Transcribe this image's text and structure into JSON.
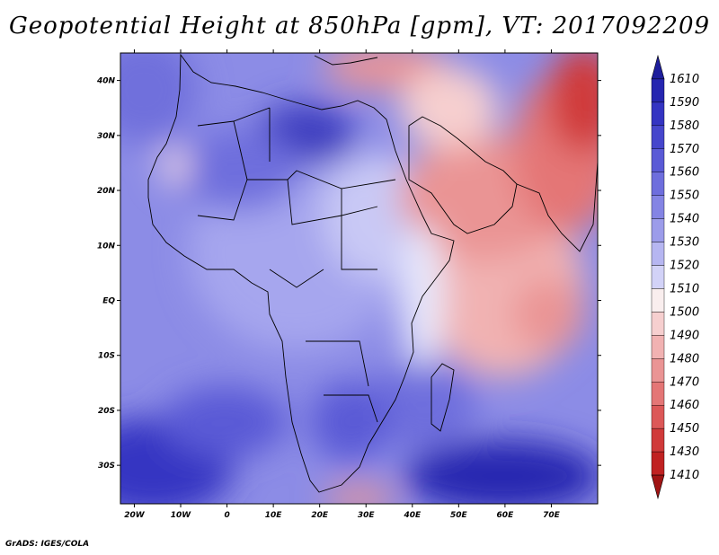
{
  "title": "Geopotential Height at 850hPa [gpm], VT: 2017092209",
  "credit": "GrADS: IGES/COLA",
  "map": {
    "lon_range": [
      -23,
      80
    ],
    "lat_range": [
      -37,
      45
    ],
    "lat_ticks": [
      {
        "lat": 40,
        "label": "40N"
      },
      {
        "lat": 30,
        "label": "30N"
      },
      {
        "lat": 20,
        "label": "20N"
      },
      {
        "lat": 10,
        "label": "10N"
      },
      {
        "lat": 0,
        "label": "EQ"
      },
      {
        "lat": -10,
        "label": "10S"
      },
      {
        "lat": -20,
        "label": "20S"
      },
      {
        "lat": -30,
        "label": "30S"
      }
    ],
    "lon_ticks": [
      {
        "lon": -20,
        "label": "20W"
      },
      {
        "lon": -10,
        "label": "10W"
      },
      {
        "lon": 0,
        "label": "0"
      },
      {
        "lon": 10,
        "label": "10E"
      },
      {
        "lon": 20,
        "label": "20E"
      },
      {
        "lon": 30,
        "label": "30E"
      },
      {
        "lon": 40,
        "label": "40E"
      },
      {
        "lon": 50,
        "label": "50E"
      },
      {
        "lon": 60,
        "label": "60E"
      },
      {
        "lon": 70,
        "label": "70E"
      }
    ]
  },
  "colorbar": {
    "levels": [
      "1610",
      "1590",
      "1580",
      "1570",
      "1560",
      "1550",
      "1540",
      "1530",
      "1520",
      "1510",
      "1500",
      "1490",
      "1480",
      "1470",
      "1460",
      "1450",
      "1430",
      "1410"
    ],
    "colors": [
      "#1e1e9c",
      "#2626b0",
      "#3434c2",
      "#4646cc",
      "#5a5ad6",
      "#6e6edd",
      "#8484e4",
      "#9c9cea",
      "#b6b6f1",
      "#d2d2f7",
      "#f9eeee",
      "#f6cfcf",
      "#f1b2b2",
      "#ea9494",
      "#e47676",
      "#dc5858",
      "#d03a3a",
      "#c02222",
      "#a01414"
    ]
  }
}
